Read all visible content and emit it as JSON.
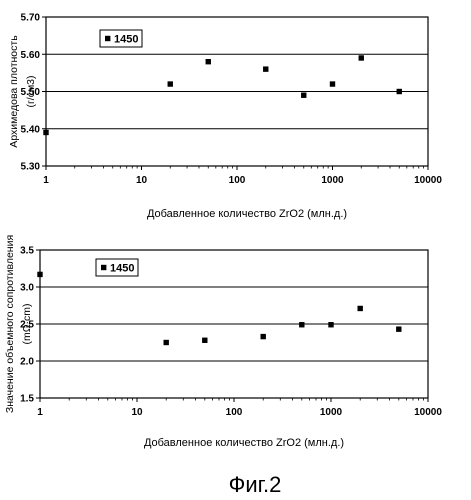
{
  "chart_data": [
    {
      "type": "scatter",
      "title": "",
      "xlabel": "Добавленное количество  ZrO2  (млн.д.)",
      "ylabel": "Архимедова плотность",
      "ylabel_unit": "(г/см3)",
      "x_scale": "log",
      "xlim": [
        1,
        10000
      ],
      "ylim": [
        5.3,
        5.7
      ],
      "x_ticks": [
        "1",
        "10",
        "100",
        "1000",
        "10000"
      ],
      "y_ticks": [
        "5.30",
        "5.40",
        "5.50",
        "5.60",
        "5.70"
      ],
      "grid": "horizontal",
      "legend_position": "top-left",
      "series": [
        {
          "name": "1450",
          "x": [
            1,
            20,
            50,
            200,
            500,
            1000,
            2000,
            5000
          ],
          "y": [
            5.39,
            5.52,
            5.58,
            5.56,
            5.49,
            5.52,
            5.59,
            5.5
          ]
        }
      ]
    },
    {
      "type": "scatter",
      "title": "",
      "xlabel": "Добавленное количество  ZrO2  (млн.д.)",
      "ylabel": "Значение объемного сопротивления",
      "ylabel_unit": "(mΩ·cm)",
      "x_scale": "log",
      "xlim": [
        1,
        10000
      ],
      "ylim": [
        1.5,
        3.5
      ],
      "x_ticks": [
        "1",
        "10",
        "100",
        "1000",
        "10000"
      ],
      "y_ticks": [
        "1.5",
        "2.0",
        "2.5",
        "3.0",
        "3.5"
      ],
      "grid": "horizontal",
      "legend_position": "top-left",
      "series": [
        {
          "name": "1450",
          "x": [
            1,
            20,
            50,
            200,
            500,
            1000,
            2000,
            5000
          ],
          "y": [
            3.17,
            2.25,
            2.28,
            2.33,
            2.49,
            2.49,
            2.71,
            2.43
          ]
        }
      ]
    }
  ],
  "figure_label": "Фиг.2"
}
